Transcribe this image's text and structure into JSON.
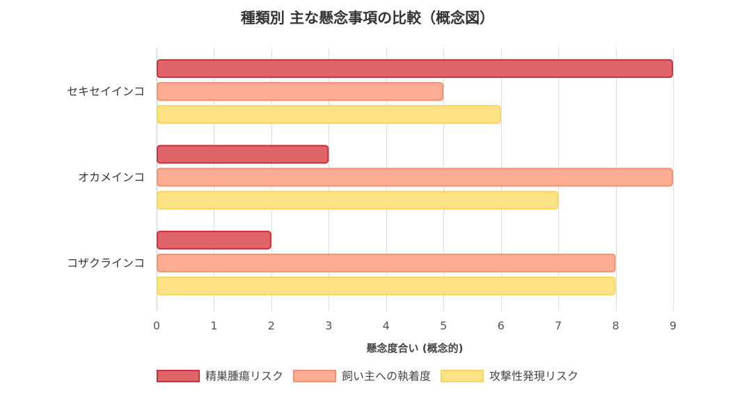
{
  "chart_data": {
    "type": "bar",
    "orientation": "horizontal",
    "title": "種類別 主な懸念事項の比較（概念図）",
    "xlabel": "懸念度合い (概念的)",
    "categories": [
      "セキセイインコ",
      "オカメインコ",
      "コザクラインコ"
    ],
    "series": [
      {
        "name": "精巣腫瘍リスク",
        "values": [
          9,
          3,
          2
        ],
        "color": "#e0656a",
        "border": "#c9303b"
      },
      {
        "name": "飼い主への執着度",
        "values": [
          5,
          9,
          8
        ],
        "color": "#ffac94",
        "border": "#f4906f"
      },
      {
        "name": "攻撃性発現リスク",
        "values": [
          6,
          7,
          8
        ],
        "color": "#fde385",
        "border": "#f8d55e"
      }
    ],
    "xlim": [
      0,
      9
    ],
    "xticks": [
      0,
      1,
      2,
      3,
      4,
      5,
      6,
      7,
      8,
      9
    ],
    "grid": true,
    "legend_position": "bottom"
  }
}
